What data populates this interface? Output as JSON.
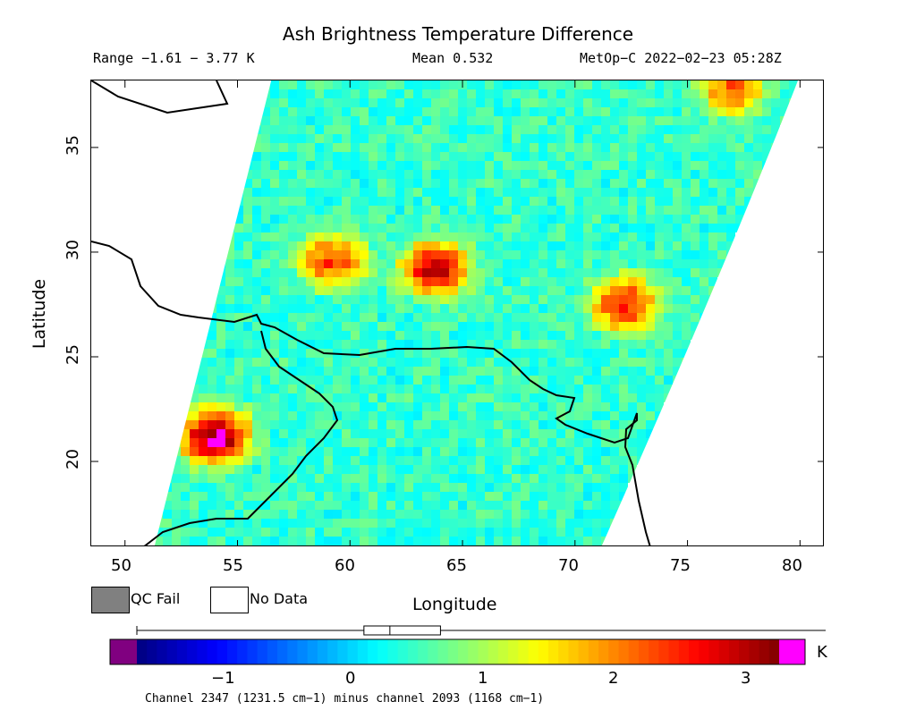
{
  "title": "Ash Brightness Temperature Difference",
  "range_text": "Range −1.61 − 3.77 K",
  "mean_text": "Mean 0.532",
  "satellite_text": "MetOp−C 2022−02−23 05:28Z",
  "xlabel": "Longitude",
  "ylabel": "Latitude",
  "x_ticks": [
    "50",
    "55",
    "60",
    "65",
    "70",
    "75",
    "80"
  ],
  "y_ticks": [
    "35",
    "30",
    "25",
    "20"
  ],
  "legend": {
    "qc_fail": "QC Fail",
    "no_data": "No Data"
  },
  "colorbar": {
    "ticks": [
      "−1",
      "0",
      "1",
      "2",
      "3"
    ],
    "unit": "K",
    "min": -1.61,
    "max": 3.77,
    "range": [
      -1.65,
      3.3
    ],
    "boxplot": {
      "q1": 0.1,
      "median": 0.3,
      "q3": 0.69,
      "whisker_low": -1.61,
      "whisker_high": 3.77
    }
  },
  "footnote": "Channel 2347 (1231.5 cm−1) minus channel 2093 (1168 cm−1)",
  "colors": {
    "qc_fail": "#808080",
    "no_data": "#ffffff",
    "under": "#800080",
    "over": "#ff00ff",
    "coast": "#000000"
  },
  "map": {
    "lon_range": [
      48.5,
      81.1
    ],
    "lat_range": [
      15.9,
      38.2
    ],
    "swath_left_edge": [
      [
        56.5,
        38.2
      ],
      [
        51.3,
        15.9
      ]
    ],
    "hotspots": [
      {
        "lon": 54,
        "lat": 21.2,
        "value": 3.4
      },
      {
        "lon": 63.8,
        "lat": 29.2,
        "value": 3.0
      },
      {
        "lon": 72.2,
        "lat": 27.5,
        "value": 2.6
      },
      {
        "lon": 59.2,
        "lat": 29.6,
        "value": 2.4
      },
      {
        "lon": 77,
        "lat": 37.8,
        "value": 2.2
      }
    ]
  }
}
